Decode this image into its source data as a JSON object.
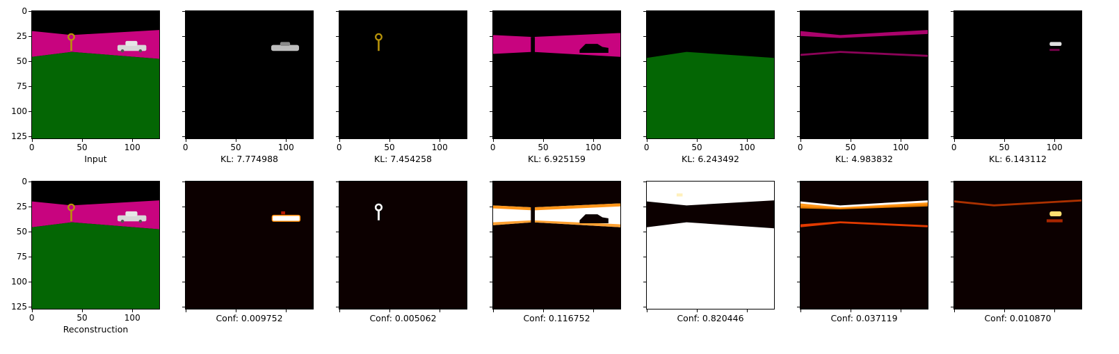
{
  "chart_data": {
    "type": "image_grid",
    "image_size": [
      128,
      128
    ],
    "x_ticks": [
      "0",
      "50",
      "100"
    ],
    "y_ticks": [
      "0",
      "25",
      "50",
      "75",
      "100",
      "125"
    ],
    "x_tick_values": [
      0,
      50,
      100
    ],
    "y_tick_values": [
      0,
      25,
      50,
      75,
      100,
      125
    ],
    "rows": [
      {
        "panels": [
          {
            "caption": "Input",
            "kind": "scene"
          },
          {
            "caption": "KL: 7.774988",
            "kind": "slot-car"
          },
          {
            "caption": "KL: 7.454258",
            "kind": "slot-key"
          },
          {
            "caption": "KL: 6.925159",
            "kind": "slot-sky"
          },
          {
            "caption": "KL: 6.243492",
            "kind": "slot-ground"
          },
          {
            "caption": "KL: 4.983832",
            "kind": "slot-edges"
          },
          {
            "caption": "KL: 6.143112",
            "kind": "slot-car-small"
          }
        ]
      },
      {
        "panels": [
          {
            "caption": "Reconstruction",
            "kind": "scene"
          },
          {
            "caption": "Conf: 0.009752",
            "kind": "mask-car"
          },
          {
            "caption": "Conf: 0.005062",
            "kind": "mask-key"
          },
          {
            "caption": "Conf: 0.116752",
            "kind": "mask-sky"
          },
          {
            "caption": "Conf: 0.820446",
            "kind": "mask-ground"
          },
          {
            "caption": "Conf: 0.037119",
            "kind": "mask-edges"
          },
          {
            "caption": "Conf: 0.010870",
            "kind": "mask-faint"
          }
        ]
      }
    ]
  },
  "colors": {
    "background": "#000000",
    "magenta": "#c8047f",
    "green": "#046604",
    "mask_low": "#0c0000",
    "mask_high": "#ffffff",
    "mask_mid": "#ff8a00"
  }
}
